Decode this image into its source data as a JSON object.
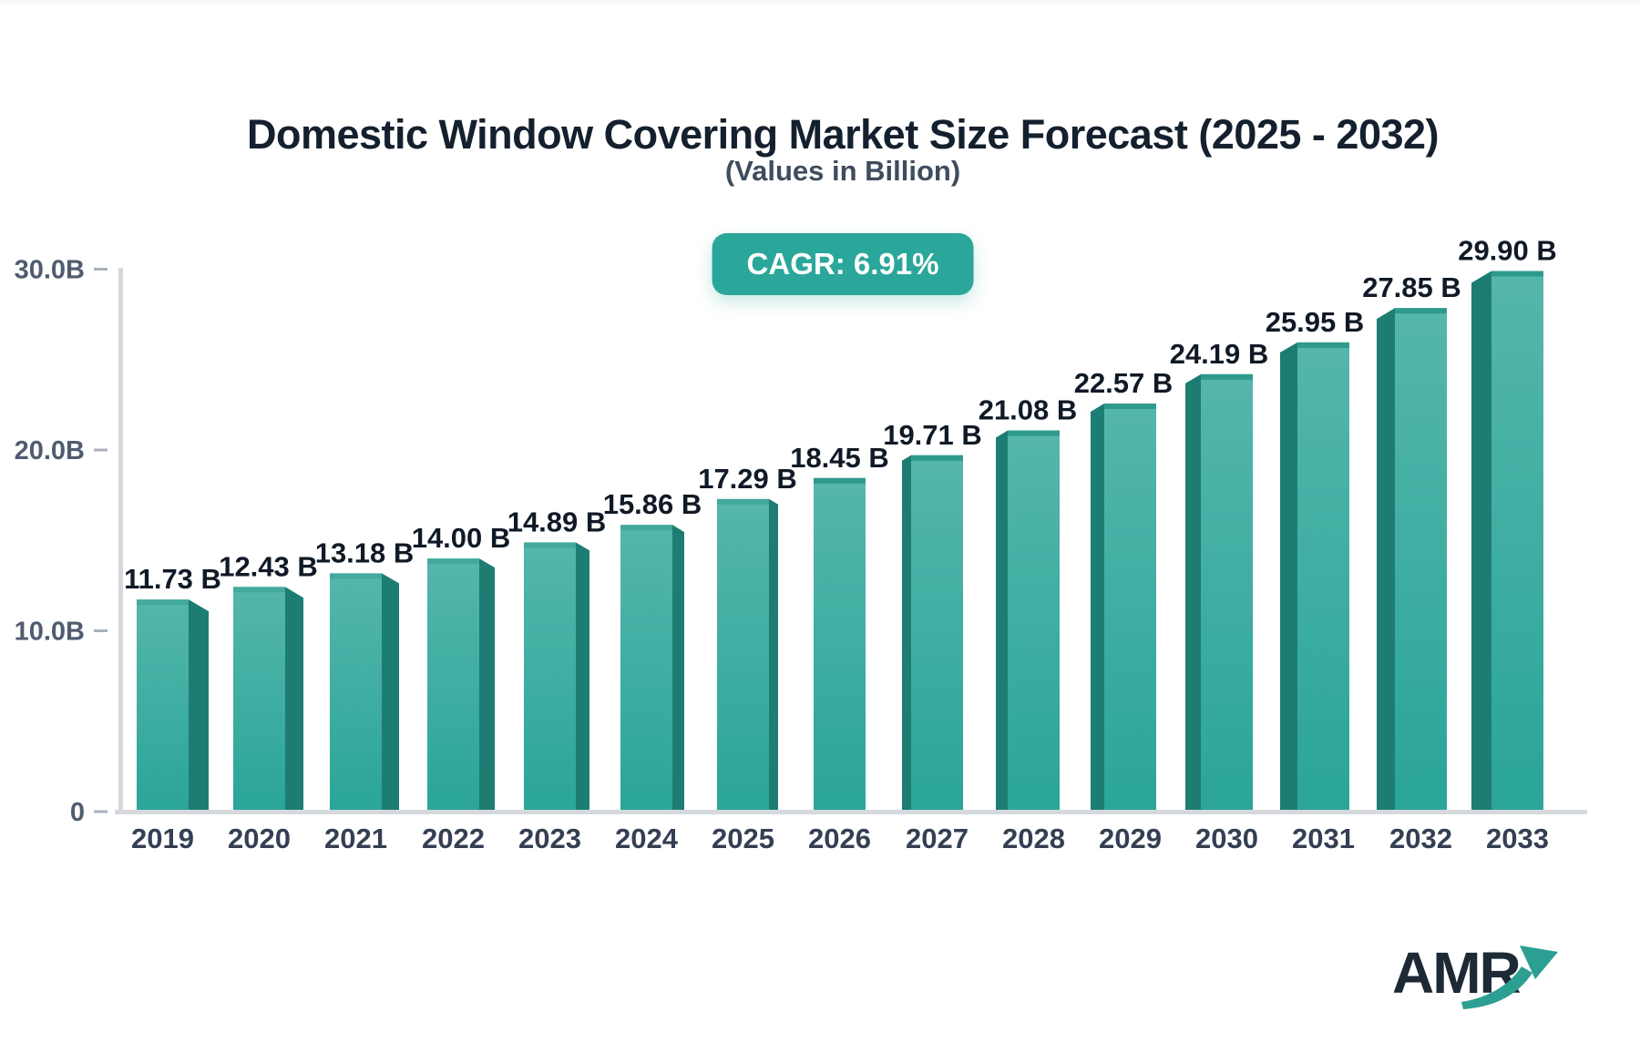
{
  "header": {
    "title": "Domestic Window Covering Market Size Forecast (2025 - 2032)",
    "subtitle": "(Values in Billion)",
    "cagr_label": "CAGR: 6.91%"
  },
  "footer": {
    "logo_text": "AMR"
  },
  "chart_data": {
    "type": "bar",
    "title": "Domestic Window Covering Market Size Forecast (2025 - 2032)",
    "subtitle": "(Values in Billion)",
    "annotation": "CAGR: 6.91%",
    "categories": [
      "2019",
      "2020",
      "2021",
      "2022",
      "2023",
      "2024",
      "2025",
      "2026",
      "2027",
      "2028",
      "2029",
      "2030",
      "2031",
      "2032",
      "2033"
    ],
    "values": [
      11.73,
      12.43,
      13.18,
      14.0,
      14.89,
      15.86,
      17.29,
      18.45,
      19.71,
      21.08,
      22.57,
      24.19,
      25.95,
      27.85,
      29.9
    ],
    "value_labels": [
      "11.73 B",
      "12.43 B",
      "13.18 B",
      "14.00 B",
      "14.89 B",
      "15.86 B",
      "17.29 B",
      "18.45 B",
      "19.71 B",
      "21.08 B",
      "22.57 B",
      "24.19 B",
      "25.95 B",
      "27.85 B",
      "29.90 B"
    ],
    "xlabel": "",
    "ylabel": "",
    "ylim": [
      0,
      30
    ],
    "grid": false,
    "legend": "none",
    "y_ticks": [
      {
        "label": "30.0B",
        "value": 30
      },
      {
        "label": "20.0B",
        "value": 20
      },
      {
        "label": "10.0B",
        "value": 10
      },
      {
        "label": "0",
        "value": 0
      }
    ],
    "colors": {
      "accent_teal": "#2aa79a",
      "bar_front_top": "#55b6ac",
      "bar_front_bottom": "#2aa598",
      "bar_side": "#1e7d72",
      "bar_cap": "#2e9a8e",
      "axis_line": "#d5d9de",
      "tick_dash": "#a9b1bb",
      "tick_text": "#4f5c70",
      "year_text": "#343f54",
      "value_text": "#101926",
      "title_text": "#14202e",
      "subtitle_text": "#3f4c5e",
      "logo_text": "#1e2936",
      "logo_arrow": "#2c9e92"
    }
  }
}
